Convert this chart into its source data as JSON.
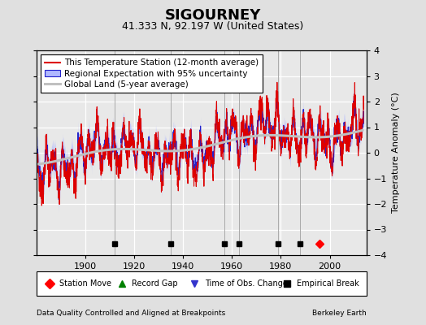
{
  "title": "SIGOURNEY",
  "subtitle": "41.333 N, 92.197 W (United States)",
  "ylabel": "Temperature Anomaly (°C)",
  "xlabel_left": "Data Quality Controlled and Aligned at Breakpoints",
  "xlabel_right": "Berkeley Earth",
  "ylim": [
    -4,
    4
  ],
  "xlim": [
    1880,
    2015
  ],
  "xticks": [
    1900,
    1920,
    1940,
    1960,
    1980,
    2000
  ],
  "yticks": [
    -4,
    -3,
    -2,
    -1,
    0,
    1,
    2,
    3,
    4
  ],
  "bg_color": "#e0e0e0",
  "plot_bg_color": "#e8e8e8",
  "grid_color": "#ffffff",
  "station_line_color": "#dd0000",
  "regional_line_color": "#2222cc",
  "regional_fill_color": "#b0b8ff",
  "global_line_color": "#c0c0c0",
  "empirical_break_years": [
    1912,
    1935,
    1957,
    1963,
    1979,
    1988
  ],
  "station_move_years": [
    1996
  ],
  "time_of_obs_years": [],
  "record_gap_years": [],
  "vline_color": "#aaaaaa",
  "title_fontsize": 13,
  "subtitle_fontsize": 9,
  "tick_fontsize": 8,
  "legend_fontsize": 7.5
}
